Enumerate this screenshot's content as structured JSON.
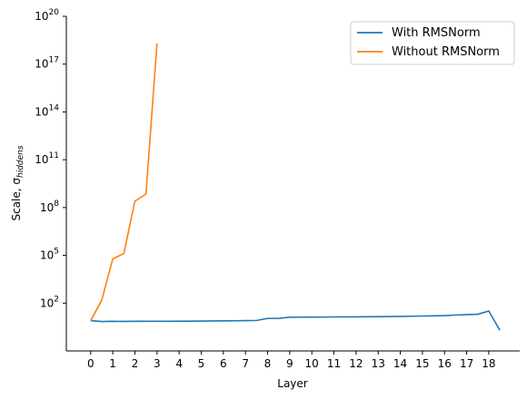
{
  "chart_data": {
    "type": "line",
    "xlabel": "Layer",
    "ylabel": "Scale, σ",
    "ylabel_subscript": "hiddens",
    "yscale": "log",
    "ylim": [
      0.1,
      1e+20
    ],
    "xlim": [
      -1.1,
      19.4
    ],
    "x_ticks": [
      0,
      1,
      2,
      3,
      4,
      5,
      6,
      7,
      8,
      9,
      10,
      11,
      12,
      13,
      14,
      15,
      16,
      17,
      18
    ],
    "y_ticks": [
      {
        "value": 100,
        "base": "10",
        "exp": "2"
      },
      {
        "value": 100000,
        "base": "10",
        "exp": "5"
      },
      {
        "value": 100000000,
        "base": "10",
        "exp": "8"
      },
      {
        "value": 100000000000,
        "base": "10",
        "exp": "11"
      },
      {
        "value": 100000000000000,
        "base": "10",
        "exp": "14"
      },
      {
        "value": 1e+17,
        "base": "10",
        "exp": "17"
      },
      {
        "value": 1e+20,
        "base": "10",
        "exp": "20"
      }
    ],
    "grid": false,
    "legend_position": "top-right",
    "series": [
      {
        "name": "With RMSNorm",
        "color": "#1f77b4",
        "points": [
          [
            0,
            8
          ],
          [
            0.5,
            7
          ],
          [
            1,
            7.2
          ],
          [
            1.5,
            7.1
          ],
          [
            2,
            7.2
          ],
          [
            2.5,
            7.2
          ],
          [
            3,
            7.3
          ],
          [
            3.5,
            7.2
          ],
          [
            4,
            7.4
          ],
          [
            4.5,
            7.4
          ],
          [
            5,
            7.5
          ],
          [
            5.5,
            7.6
          ],
          [
            6,
            7.7
          ],
          [
            6.5,
            7.8
          ],
          [
            7,
            8
          ],
          [
            7.5,
            8.2
          ],
          [
            8,
            11
          ],
          [
            8.5,
            11
          ],
          [
            9,
            13
          ],
          [
            9.5,
            13.2
          ],
          [
            10,
            13.3
          ],
          [
            10.5,
            13.4
          ],
          [
            11,
            13.6
          ],
          [
            11.5,
            13.7
          ],
          [
            12,
            13.8
          ],
          [
            12.5,
            14
          ],
          [
            13,
            14.2
          ],
          [
            13.5,
            14.4
          ],
          [
            14,
            14.7
          ],
          [
            14.5,
            15
          ],
          [
            15,
            15.5
          ],
          [
            15.5,
            16
          ],
          [
            16,
            16.4
          ],
          [
            16.5,
            18
          ],
          [
            17,
            19
          ],
          [
            17.5,
            20
          ],
          [
            18,
            32
          ],
          [
            18.5,
            2
          ]
        ]
      },
      {
        "name": "Without RMSNorm",
        "color": "#ff7f0e",
        "points": [
          [
            0,
            8
          ],
          [
            0.5,
            150
          ],
          [
            1,
            60000
          ],
          [
            1.5,
            130000
          ],
          [
            2,
            250000000
          ],
          [
            2.5,
            700000000
          ],
          [
            3,
            2e+18
          ]
        ]
      }
    ]
  }
}
